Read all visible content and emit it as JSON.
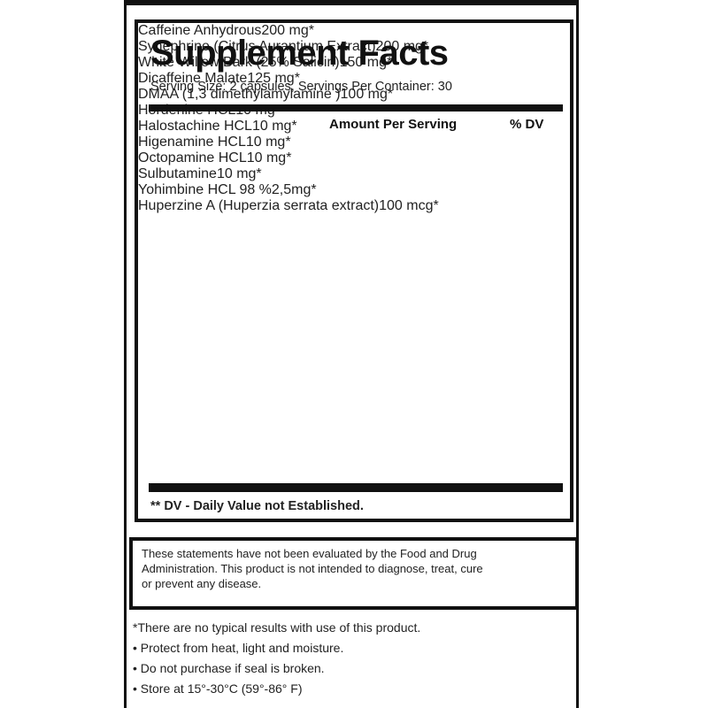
{
  "header": {
    "title": "Supplement Facts",
    "serving": "Serving Size: 2 capsules, Servings Per Container: 30"
  },
  "table": {
    "columns": [
      "Amount Per Serving",
      "% DV"
    ],
    "rows": [
      [
        "Caffeine Anhydrous",
        "200 mg",
        "*"
      ],
      [
        "Synephrine (Citrus Aurantium Extract)",
        "200 mg",
        "*"
      ],
      [
        "White Willow Bark (25% Salicin)",
        "150 mg",
        "*"
      ],
      [
        "Dicaffeine Malate",
        "125 mg",
        "*"
      ],
      [
        "DMAA (1,3 dimethylamylamine )",
        "100 mg",
        "*"
      ],
      [
        "Hordenine HCL",
        "10 mg",
        "*"
      ],
      [
        "Halostachine HCL",
        "10 mg",
        "*"
      ],
      [
        "Higenamine HCL",
        "10 mg",
        "*"
      ],
      [
        "Octopamine HCL",
        "10 mg",
        "*"
      ],
      [
        "Sulbutamine",
        "10 mg",
        "*"
      ],
      [
        "Yohimbine  HCL 98 %",
        "2,5mg",
        "*"
      ],
      [
        "Huperzine A (Huperzia serrata extract)",
        "100 mcg",
        "*"
      ]
    ],
    "footnote": "** DV -  Daily Value not Established."
  },
  "disclaimer": [
    "These statements have not been evaluated by the Food and Drug",
    "Administration. This product is not intended to diagnose, treat, cure",
    "or prevent any disease."
  ],
  "notes": [
    "*There are no typical results with use of this product.",
    "• Protect from heat, light and moisture.",
    "• Do not purchase if seal is broken.",
    "• Store at 15°-30°C (59°-86° F)"
  ]
}
